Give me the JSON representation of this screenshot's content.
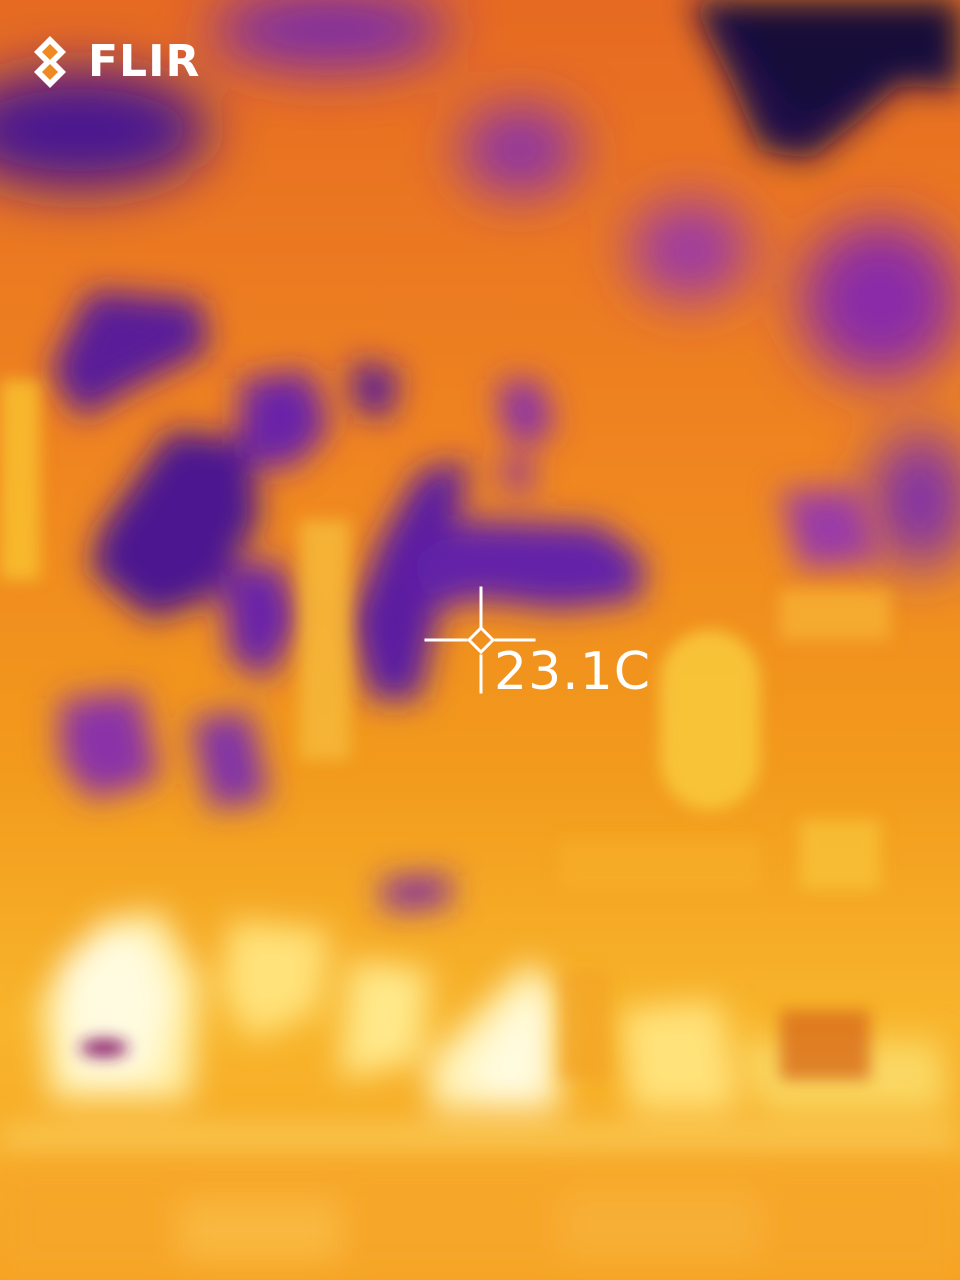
{
  "brand": {
    "logo_text": "FLIR",
    "logo_icon": "flir-diamond-logo-icon"
  },
  "measurement": {
    "spot_temperature": "23.1C",
    "reticle_icon": "crosshair-icon"
  },
  "palette": {
    "name": "iron",
    "cold": "#2a0a5e",
    "cool": "#7a2aa8",
    "mid": "#e0661c",
    "warm": "#f59a1a",
    "hot": "#ffd84a",
    "hottest": "#fff6c8",
    "overlay": "#ffffff"
  }
}
